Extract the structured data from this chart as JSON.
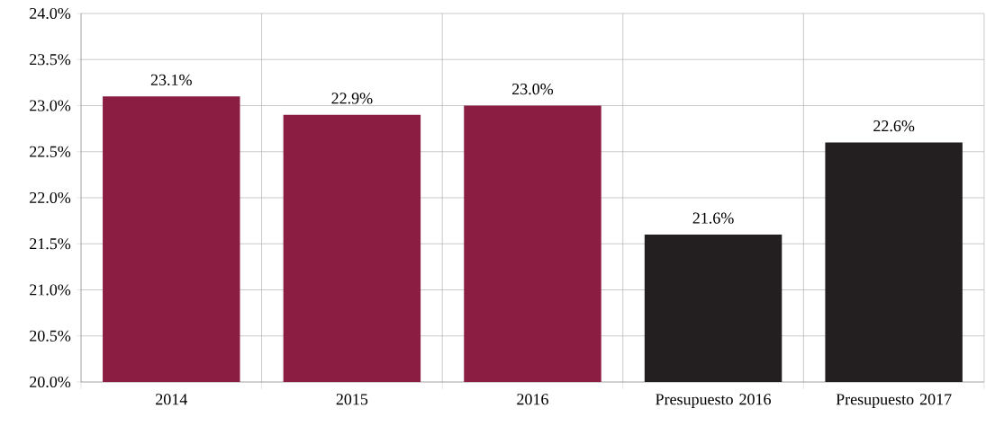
{
  "chart_data": {
    "type": "bar",
    "categories": [
      "2014",
      "2015",
      "2016",
      "Presupuesto 2016",
      "Presupuesto 2017"
    ],
    "values": [
      23.1,
      22.9,
      23.0,
      21.6,
      22.6
    ],
    "colors": [
      "#8b1c42",
      "#8b1c42",
      "#8b1c42",
      "#231f20",
      "#231f20"
    ],
    "value_labels": [
      "23.1%",
      "22.9%",
      "23.0%",
      "21.6%",
      "22.6%"
    ],
    "ylim": [
      20,
      24
    ],
    "yticks": [
      {
        "value": 20,
        "label": "20.0%"
      },
      {
        "value": 20.5,
        "label": "20.5%"
      },
      {
        "value": 21,
        "label": "21.0%"
      },
      {
        "value": 21.5,
        "label": "21.5%"
      },
      {
        "value": 22,
        "label": "22.0%"
      },
      {
        "value": 22.5,
        "label": "22.5%"
      },
      {
        "value": 23,
        "label": "23.0%"
      },
      {
        "value": 23.5,
        "label": "23.5%"
      },
      {
        "value": 24,
        "label": "24.0%"
      }
    ],
    "grid": true
  }
}
